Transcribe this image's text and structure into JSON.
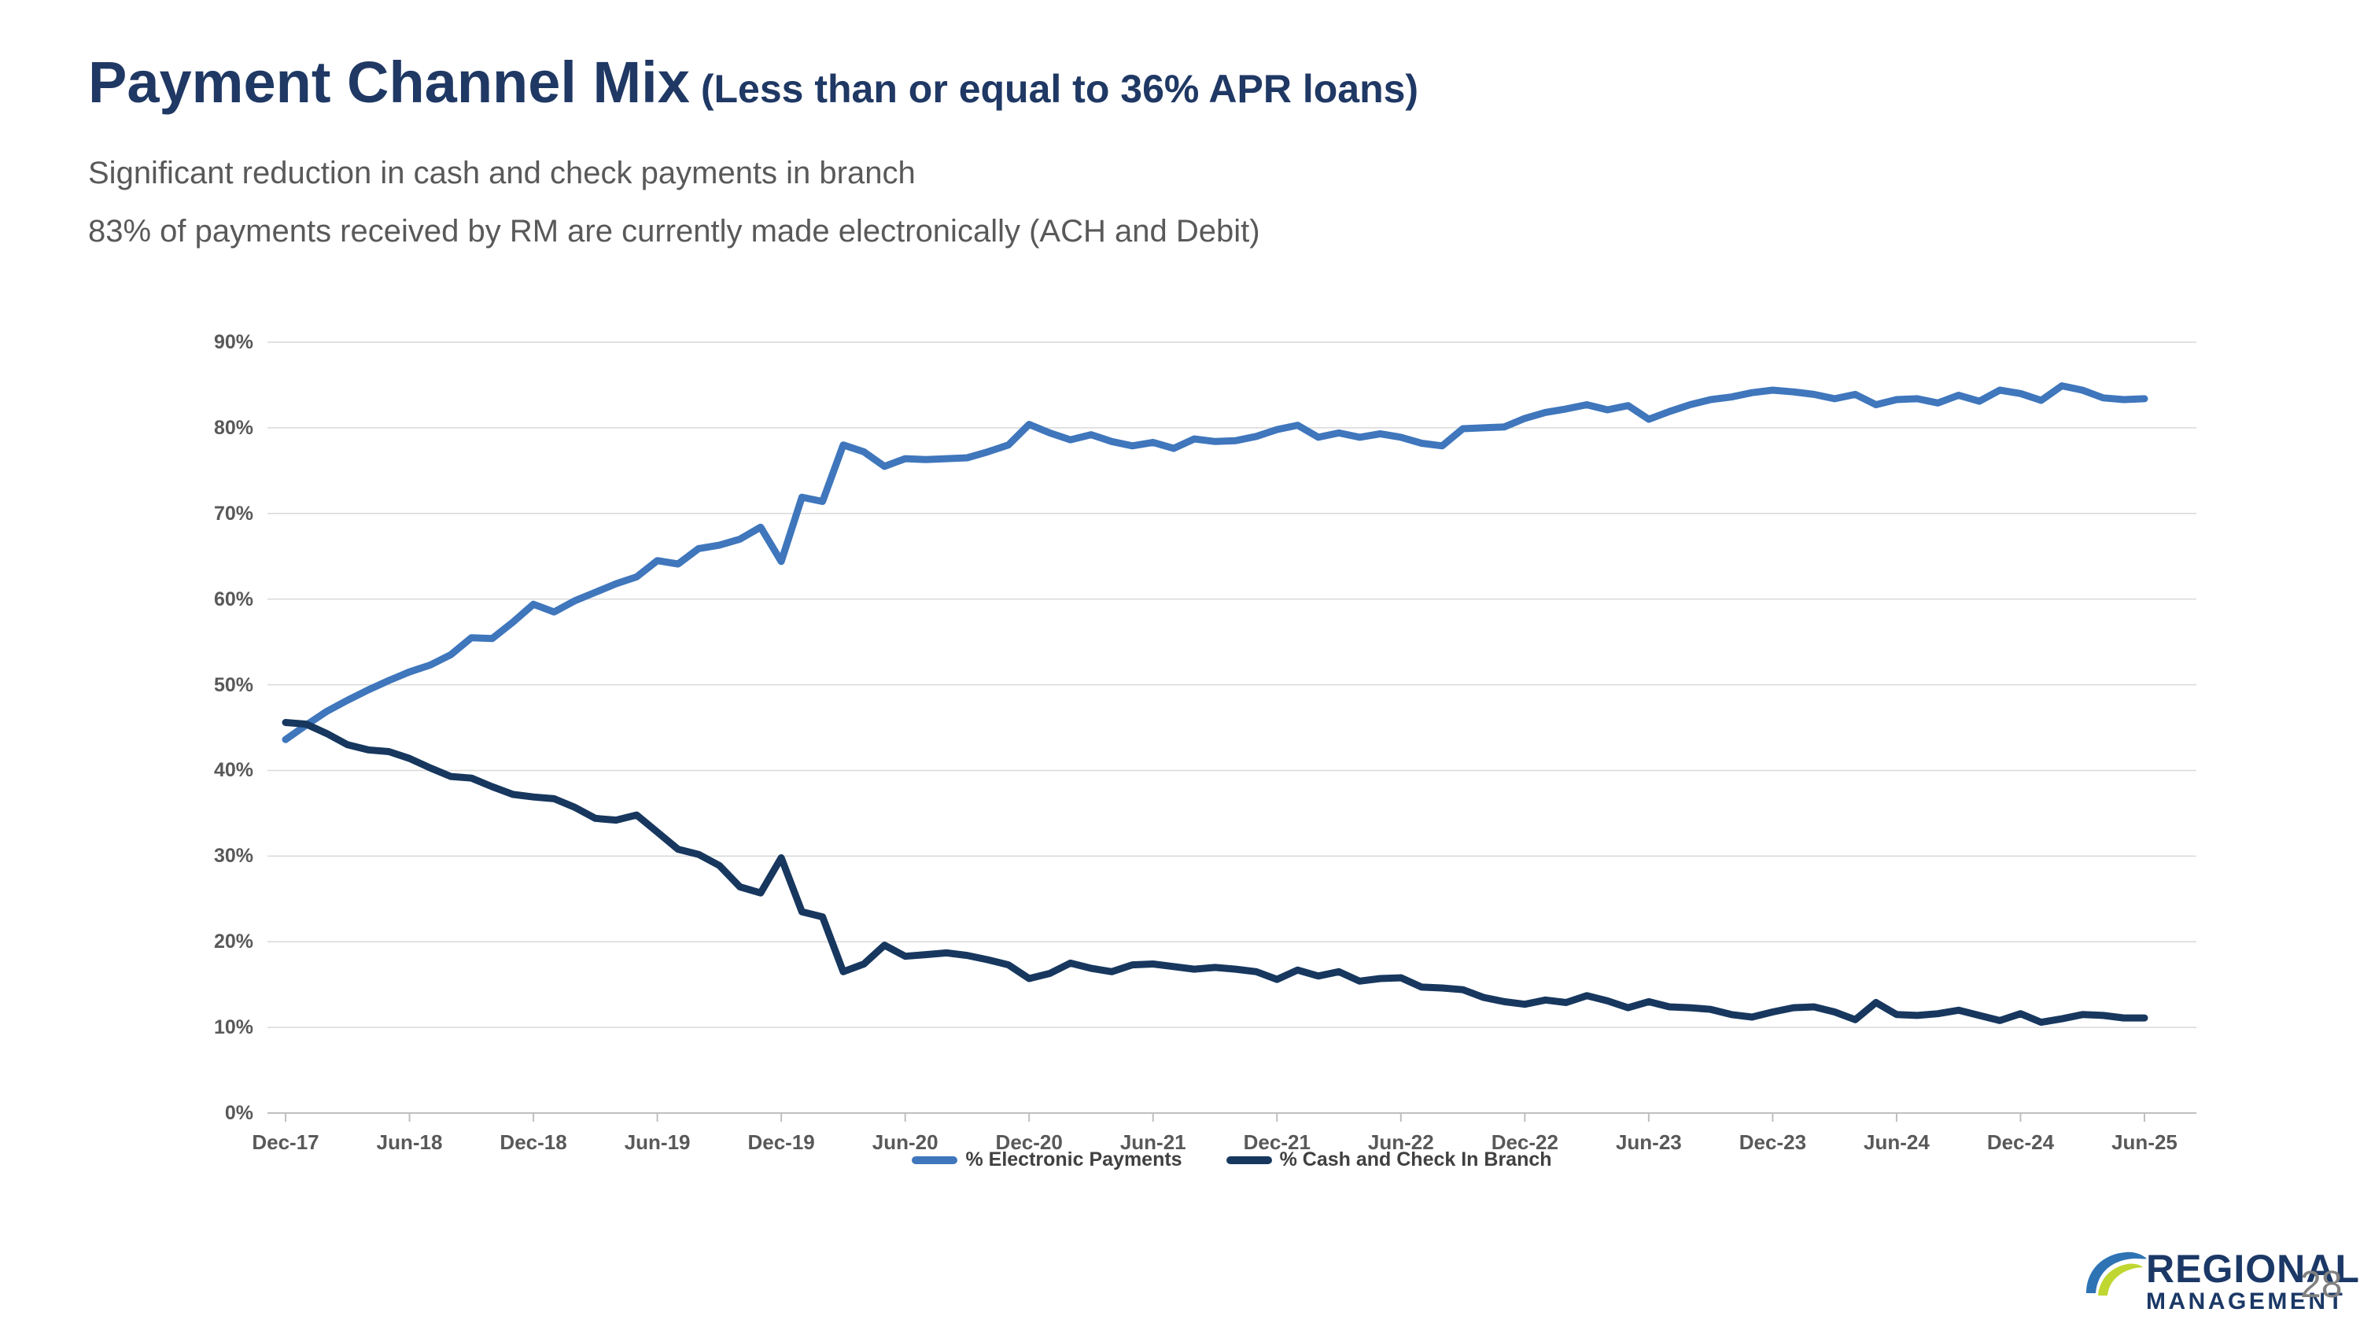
{
  "header": {
    "title": "Payment Channel Mix",
    "title_qualifier": "(Less than or equal to 36% APR loans)",
    "subtitle_line1": "Significant reduction in cash and check payments in branch",
    "subtitle_line2": "83% of payments received by RM are currently made electronically (ACH and Debit)"
  },
  "footer": {
    "logo_line1": "REGIONAL",
    "logo_registered_mark": "®",
    "logo_line2": "MANAGEMENT",
    "page_number": "28"
  },
  "colors": {
    "title_navy": "#1F3864",
    "subtitle_gray": "#595959",
    "axis_label_gray": "#595959",
    "gridline": "#D9D9D9",
    "axis_line": "#BFBFBF",
    "electronic_blue": "#3F76BC",
    "cash_navy": "#17375E",
    "legend_text": "#404040",
    "logo_navy": "#1B3866",
    "logo_swoosh_blue": "#2E74B5",
    "logo_swoosh_green": "#BFD730",
    "page_number_gray": "#808080"
  },
  "chart_data": {
    "type": "line",
    "title": "",
    "x_unit": "month",
    "x_range_label": "Dec-17 to Jun-25, monthly",
    "x_tick_labels": [
      "Dec-17",
      "Jun-18",
      "Dec-18",
      "Jun-19",
      "Dec-19",
      "Jun-20",
      "Dec-20",
      "Jun-21",
      "Dec-21",
      "Jun-22",
      "Dec-22",
      "Jun-23",
      "Dec-23",
      "Jun-24",
      "Dec-24",
      "Jun-25"
    ],
    "x_tick_interval_months": 6,
    "y_tick_labels": [
      "0%",
      "10%",
      "20%",
      "30%",
      "40%",
      "50%",
      "60%",
      "70%",
      "80%",
      "90%"
    ],
    "ylim": [
      0,
      90
    ],
    "grid": "horizontal",
    "legend_position": "bottom-center",
    "series": [
      {
        "name": "% Electronic Payments",
        "color": "#3F76BC",
        "values": [
          43.6,
          45.3,
          46.9,
          48.2,
          49.4,
          50.5,
          51.5,
          52.3,
          53.5,
          55.5,
          55.4,
          57.3,
          59.4,
          58.5,
          59.8,
          60.8,
          61.8,
          62.6,
          64.5,
          64.1,
          65.9,
          66.3,
          67.0,
          68.4,
          64.4,
          71.9,
          71.4,
          78.0,
          77.2,
          75.5,
          76.4,
          76.3,
          76.4,
          76.5,
          77.2,
          78.0,
          80.4,
          79.4,
          78.6,
          79.2,
          78.4,
          77.9,
          78.3,
          77.6,
          78.7,
          78.4,
          78.5,
          79.0,
          79.8,
          80.3,
          78.9,
          79.4,
          78.9,
          79.3,
          78.9,
          78.2,
          77.9,
          79.9,
          80.0,
          80.1,
          81.1,
          81.8,
          82.2,
          82.7,
          82.1,
          82.6,
          81.0,
          81.9,
          82.7,
          83.3,
          83.6,
          84.1,
          84.4,
          84.2,
          83.9,
          83.4,
          83.9,
          82.7,
          83.3,
          83.4,
          82.9,
          83.8,
          83.1,
          84.4,
          84.0,
          83.2,
          84.9,
          84.4,
          83.5,
          83.3,
          83.4
        ]
      },
      {
        "name": "% Cash and Check In Branch",
        "color": "#17375E",
        "values": [
          45.6,
          45.4,
          44.3,
          43.0,
          42.4,
          42.2,
          41.4,
          40.3,
          39.3,
          39.1,
          38.1,
          37.2,
          36.9,
          36.7,
          35.7,
          34.4,
          34.2,
          34.8,
          32.8,
          30.8,
          30.2,
          28.9,
          26.4,
          25.7,
          29.8,
          23.5,
          22.9,
          16.5,
          17.4,
          19.6,
          18.3,
          18.5,
          18.7,
          18.4,
          17.9,
          17.3,
          15.7,
          16.3,
          17.5,
          16.9,
          16.5,
          17.3,
          17.4,
          17.1,
          16.8,
          17.0,
          16.8,
          16.5,
          15.6,
          16.7,
          16.0,
          16.5,
          15.4,
          15.7,
          15.8,
          14.7,
          14.6,
          14.4,
          13.5,
          13.0,
          12.7,
          13.2,
          12.9,
          13.7,
          13.1,
          12.3,
          13.0,
          12.4,
          12.3,
          12.1,
          11.5,
          11.2,
          11.8,
          12.3,
          12.4,
          11.8,
          10.9,
          12.9,
          11.5,
          11.4,
          11.6,
          12.0,
          11.4,
          10.8,
          11.6,
          10.6,
          11.0,
          11.5,
          11.4,
          11.1,
          11.1
        ]
      }
    ]
  }
}
